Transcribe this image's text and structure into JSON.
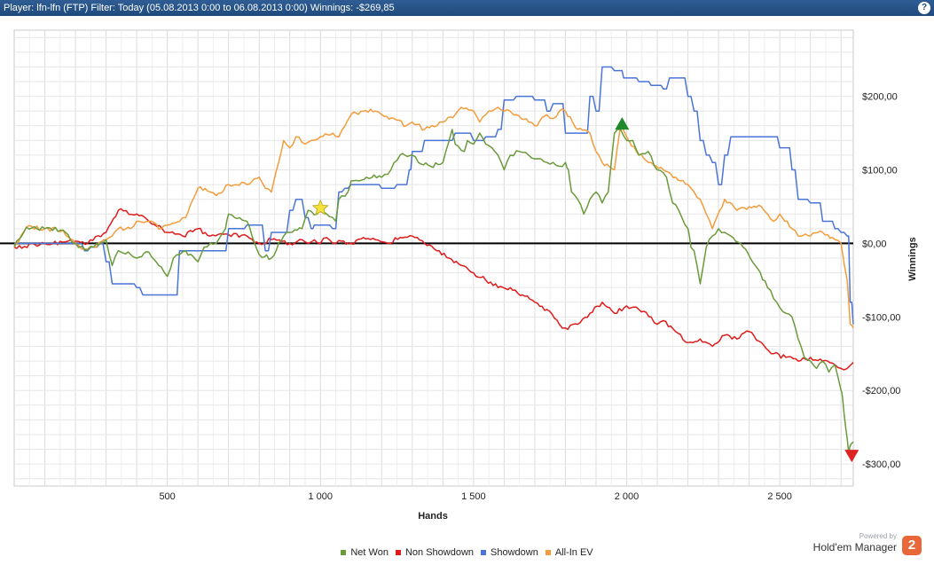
{
  "window": {
    "title": "Player: lfn-lfn (FTP) Filter: Today (05.08.2013 0:00 to 06.08.2013 0:00) Winnings: -$269,85",
    "help_icon": "question-icon"
  },
  "branding": {
    "powered_by": "Powered by",
    "name": "Hold'em Manager",
    "logo": "2"
  },
  "chart_data": {
    "type": "line",
    "xlabel": "Hands",
    "ylabel": "Winnings",
    "xlim": [
      0,
      2740
    ],
    "ylim": [
      -330,
      290
    ],
    "x_ticks": [
      500,
      1000,
      1500,
      2000,
      2500
    ],
    "x_tick_labels": [
      "500",
      "1 000",
      "1 500",
      "2 000",
      "2 500"
    ],
    "y_ticks": [
      200,
      100,
      0,
      -100,
      -200,
      -300
    ],
    "y_tick_labels": [
      "$200,00",
      "$100,00",
      "$0,00",
      "-$100,00",
      "-$200,00",
      "-$300,00"
    ],
    "grid": true,
    "legend_position": "bottom",
    "series": [
      {
        "name": "Net Won",
        "color": "#6a9a3a",
        "x": [
          0,
          40,
          100,
          160,
          200,
          230,
          260,
          300,
          320,
          340,
          380,
          400,
          440,
          480,
          500,
          520,
          540,
          560,
          600,
          620,
          640,
          660,
          690,
          700,
          720,
          760,
          800,
          840,
          880,
          900,
          940,
          960,
          990,
          1000,
          1020,
          1050,
          1060,
          1090,
          1100,
          1150,
          1200,
          1230,
          1260,
          1300,
          1320,
          1360,
          1400,
          1430,
          1440,
          1470,
          1480,
          1500,
          1520,
          1540,
          1560,
          1580,
          1600,
          1620,
          1650,
          1680,
          1700,
          1720,
          1740,
          1760,
          1780,
          1800,
          1810,
          1820,
          1840,
          1860,
          1880,
          1900,
          1920,
          1940,
          1960,
          1980,
          2000,
          2020,
          2040,
          2070,
          2100,
          2130,
          2150,
          2170,
          2200,
          2210,
          2220,
          2240,
          2260,
          2280,
          2300,
          2320,
          2340,
          2380,
          2420,
          2460,
          2490,
          2520,
          2540,
          2560,
          2580,
          2600,
          2620,
          2640,
          2660,
          2680,
          2700,
          2705,
          2715,
          2725,
          2730,
          2740
        ],
        "values": [
          -5,
          22,
          20,
          18,
          0,
          -8,
          -5,
          5,
          -30,
          -10,
          -15,
          -20,
          -12,
          -32,
          -45,
          -20,
          -15,
          -10,
          -25,
          -5,
          0,
          0,
          20,
          40,
          35,
          30,
          -15,
          -20,
          10,
          15,
          20,
          45,
          40,
          45,
          40,
          30,
          60,
          70,
          85,
          90,
          90,
          100,
          120,
          120,
          110,
          105,
          110,
          155,
          135,
          125,
          140,
          135,
          150,
          135,
          130,
          120,
          100,
          120,
          125,
          120,
          115,
          115,
          110,
          110,
          105,
          110,
          100,
          70,
          60,
          40,
          60,
          70,
          55,
          70,
          150,
          155,
          140,
          140,
          120,
          125,
          100,
          90,
          55,
          45,
          20,
          -5,
          -10,
          -55,
          -5,
          10,
          20,
          15,
          10,
          -5,
          -30,
          -60,
          -80,
          -95,
          -100,
          -130,
          -155,
          -160,
          -170,
          -160,
          -175,
          -165,
          -200,
          -210,
          -250,
          -285,
          -275,
          -270
        ]
      },
      {
        "name": "Non Showdown",
        "color": "#e01b1b",
        "x": [
          0,
          100,
          200,
          240,
          300,
          340,
          400,
          440,
          500,
          550,
          600,
          640,
          700,
          760,
          800,
          840,
          900,
          940,
          960,
          980,
          1000,
          1020,
          1040,
          1060,
          1100,
          1140,
          1180,
          1220,
          1260,
          1300,
          1340,
          1380,
          1420,
          1460,
          1500,
          1540,
          1580,
          1620,
          1660,
          1700,
          1740,
          1780,
          1800,
          1840,
          1880,
          1920,
          1960,
          2000,
          2040,
          2080,
          2100,
          2120,
          2160,
          2200,
          2240,
          2280,
          2320,
          2360,
          2400,
          2440,
          2480,
          2520,
          2560,
          2600,
          2640,
          2680,
          2700,
          2720,
          2740
        ],
        "values": [
          -5,
          0,
          3,
          0,
          15,
          45,
          40,
          30,
          15,
          10,
          20,
          10,
          12,
          10,
          0,
          5,
          0,
          5,
          0,
          5,
          0,
          8,
          0,
          4,
          0,
          8,
          5,
          0,
          8,
          10,
          0,
          -10,
          -20,
          -30,
          -40,
          -50,
          -60,
          -60,
          -70,
          -80,
          -90,
          -110,
          -115,
          -110,
          -95,
          -80,
          -95,
          -85,
          -90,
          -100,
          -110,
          -105,
          -120,
          -135,
          -130,
          -140,
          -125,
          -130,
          -120,
          -135,
          -150,
          -155,
          -160,
          -155,
          -160,
          -165,
          -170,
          -170,
          -162
        ]
      },
      {
        "name": "Showdown",
        "color": "#4a74d8",
        "x": [
          0,
          200,
          230,
          250,
          280,
          300,
          320,
          360,
          400,
          420,
          460,
          500,
          540,
          570,
          600,
          640,
          700,
          760,
          800,
          820,
          840,
          880,
          900,
          920,
          950,
          970,
          980,
          1000,
          1020,
          1040,
          1060,
          1080,
          1100,
          1150,
          1200,
          1250,
          1290,
          1300,
          1340,
          1380,
          1420,
          1440,
          1480,
          1500,
          1540,
          1580,
          1600,
          1620,
          1640,
          1660,
          1700,
          1740,
          1760,
          1800,
          1840,
          1880,
          1900,
          1920,
          1940,
          1960,
          1980,
          1990,
          2000,
          2040,
          2080,
          2120,
          2140,
          2180,
          2200,
          2220,
          2240,
          2260,
          2280,
          2300,
          2320,
          2340,
          2380,
          2420,
          2460,
          2500,
          2540,
          2560,
          2580,
          2600,
          2640,
          2680,
          2700,
          2720,
          2730,
          2740
        ],
        "values": [
          0,
          0,
          -10,
          -5,
          0,
          -25,
          -55,
          -55,
          -60,
          -70,
          -70,
          -70,
          -10,
          -10,
          -10,
          -10,
          20,
          25,
          25,
          -10,
          15,
          15,
          45,
          60,
          35,
          20,
          25,
          25,
          25,
          20,
          70,
          75,
          80,
          80,
          75,
          80,
          100,
          125,
          140,
          140,
          140,
          150,
          150,
          140,
          145,
          155,
          195,
          195,
          200,
          200,
          195,
          180,
          190,
          150,
          150,
          200,
          180,
          240,
          240,
          235,
          235,
          225,
          225,
          220,
          215,
          210,
          225,
          225,
          200,
          180,
          140,
          120,
          110,
          80,
          120,
          145,
          145,
          145,
          145,
          130,
          100,
          60,
          60,
          55,
          30,
          20,
          15,
          10,
          -80,
          -110
        ]
      },
      {
        "name": "All-In EV",
        "color": "#f39c3c",
        "x": [
          0,
          40,
          100,
          160,
          200,
          230,
          260,
          300,
          320,
          340,
          380,
          400,
          440,
          480,
          500,
          540,
          560,
          600,
          640,
          660,
          700,
          760,
          800,
          820,
          840,
          880,
          900,
          920,
          950,
          970,
          1000,
          1040,
          1060,
          1080,
          1100,
          1140,
          1180,
          1200,
          1240,
          1280,
          1300,
          1340,
          1380,
          1400,
          1440,
          1460,
          1500,
          1520,
          1540,
          1560,
          1580,
          1600,
          1640,
          1680,
          1700,
          1740,
          1760,
          1780,
          1800,
          1840,
          1880,
          1900,
          1920,
          1960,
          1980,
          2000,
          2040,
          2080,
          2120,
          2160,
          2200,
          2220,
          2240,
          2260,
          2280,
          2320,
          2360,
          2400,
          2440,
          2460,
          2480,
          2500,
          2540,
          2560,
          2600,
          2640,
          2680,
          2700,
          2720,
          2730,
          2740
        ],
        "values": [
          -5,
          22,
          20,
          18,
          0,
          -8,
          -5,
          5,
          10,
          20,
          20,
          30,
          30,
          20,
          25,
          30,
          35,
          75,
          70,
          65,
          80,
          80,
          90,
          75,
          70,
          140,
          130,
          145,
          135,
          140,
          145,
          150,
          145,
          160,
          175,
          180,
          180,
          175,
          170,
          160,
          165,
          155,
          160,
          165,
          175,
          185,
          180,
          165,
          175,
          180,
          185,
          180,
          175,
          165,
          160,
          175,
          170,
          180,
          180,
          155,
          150,
          125,
          110,
          100,
          160,
          145,
          120,
          110,
          100,
          90,
          80,
          70,
          60,
          40,
          20,
          60,
          45,
          50,
          50,
          40,
          30,
          40,
          20,
          10,
          10,
          15,
          5,
          0,
          -50,
          -110,
          -115
        ]
      }
    ],
    "markers": [
      {
        "type": "star",
        "x": 1000,
        "y": 48,
        "color": "#f5e23a"
      },
      {
        "type": "triangle-up",
        "x": 1985,
        "y": 162,
        "color": "#1f8a2a"
      },
      {
        "type": "triangle-down",
        "x": 2735,
        "y": -288,
        "color": "#dd2222"
      }
    ]
  }
}
